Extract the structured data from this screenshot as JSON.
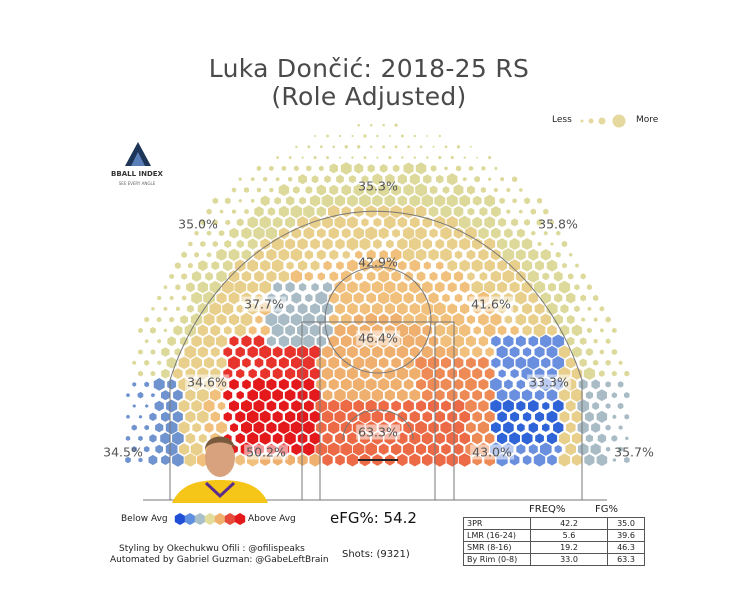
{
  "title_line1": "Luka Dončić: 2018-25 RS",
  "title_line2": "(Role Adjusted)",
  "legend_size": {
    "less": "Less",
    "more": "More"
  },
  "logo": {
    "name": "BBALL INDEX",
    "tagline": "SEE EVERY ANGLE"
  },
  "zones": [
    {
      "id": "above-break-3",
      "label": "35.3%"
    },
    {
      "id": "left-wing-3",
      "label": "35.0%"
    },
    {
      "id": "right-wing-3",
      "label": "35.8%"
    },
    {
      "id": "top-long-mid",
      "label": "42.9%"
    },
    {
      "id": "left-long-mid",
      "label": "37.7%"
    },
    {
      "id": "right-long-mid",
      "label": "41.6%"
    },
    {
      "id": "paint-mid",
      "label": "46.4%"
    },
    {
      "id": "left-baseline-mid",
      "label": "34.6%"
    },
    {
      "id": "right-baseline-mid",
      "label": "33.3%"
    },
    {
      "id": "rim",
      "label": "63.3%"
    },
    {
      "id": "left-corner-3",
      "label": "34.5%"
    },
    {
      "id": "right-corner-3",
      "label": "35.7%"
    },
    {
      "id": "left-short-mid",
      "label": "50.2%"
    },
    {
      "id": "right-short-mid",
      "label": "43.0%"
    }
  ],
  "color_legend": {
    "below": "Below Avg",
    "above": "Above Avg",
    "colors": [
      "#1f4fd6",
      "#5f8fe0",
      "#a9bfc9",
      "#e3dd9c",
      "#efb070",
      "#e54a3a",
      "#e3191c"
    ]
  },
  "efg": "eFG%: 54.2",
  "shots": "Shots: (9321)",
  "credits": {
    "line1": "Styling by Okechukwu Ofili : @ofilispeaks",
    "line2": "Automated by Gabriel Guzman: @GabeLeftBrain"
  },
  "table": {
    "headers": [
      "FREQ%",
      "FG%"
    ],
    "rows": [
      {
        "zone": "3PR",
        "freq": "42.2",
        "fg": "35.0"
      },
      {
        "zone": "LMR (16-24)",
        "freq": "5.6",
        "fg": "39.6"
      },
      {
        "zone": "SMR (8-16)",
        "freq": "19.2",
        "fg": "46.3"
      },
      {
        "zone": "By Rim (0-8)",
        "freq": "33.0",
        "fg": "63.3"
      }
    ]
  },
  "chart_data": {
    "type": "heatmap",
    "title": "Luka Dončić: 2018-25 RS",
    "subtitle": "(Role Adjusted)",
    "zone_fg_pct": {
      "above-break-3": 35.3,
      "left-wing-3": 35.0,
      "right-wing-3": 35.8,
      "top-long-mid": 42.9,
      "left-long-mid": 37.7,
      "right-long-mid": 41.6,
      "paint-mid": 46.4,
      "left-baseline-mid": 34.6,
      "right-baseline-mid": 33.3,
      "rim": 63.3,
      "left-corner-3": 34.5,
      "right-corner-3": 35.7,
      "left-short-mid": 50.2,
      "right-short-mid": 43.0
    },
    "efg_pct": 54.2,
    "shots": 9321,
    "table": [
      {
        "zone": "3PR",
        "freq_pct": 42.2,
        "fg_pct": 35.0
      },
      {
        "zone": "LMR (16-24)",
        "freq_pct": 5.6,
        "fg_pct": 39.6
      },
      {
        "zone": "SMR (8-16)",
        "freq_pct": 19.2,
        "fg_pct": 46.3
      },
      {
        "zone": "By Rim (0-8)",
        "freq_pct": 33.0,
        "fg_pct": 63.3
      }
    ],
    "legend": [
      "Below Avg",
      "Above Avg"
    ]
  }
}
